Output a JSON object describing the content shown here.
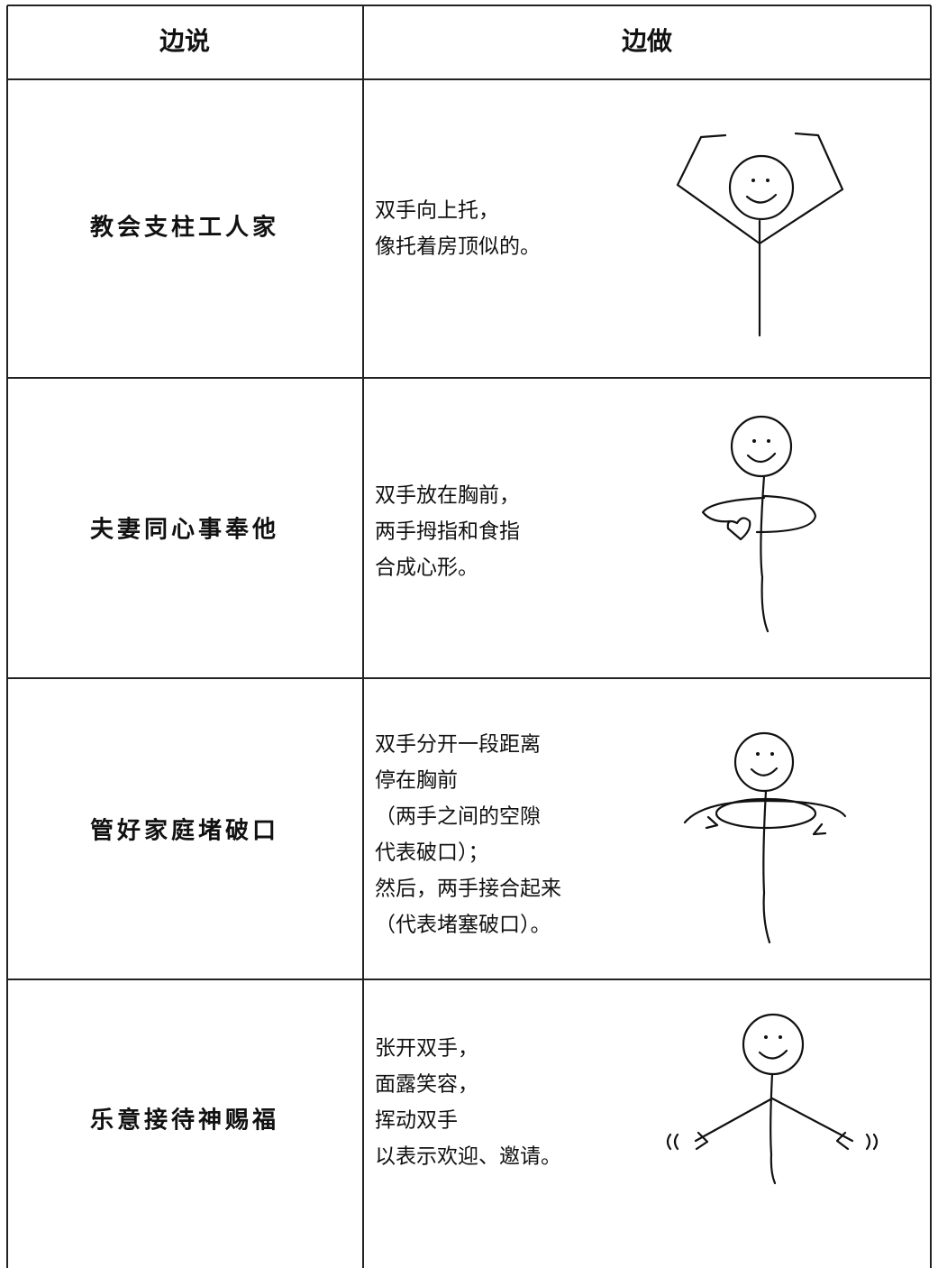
{
  "table": {
    "headers": [
      "边说",
      "边做"
    ],
    "rows": [
      {
        "say": "教会支柱工人家",
        "do": [
          "双手向上托，",
          "像托着房顶似的。"
        ]
      },
      {
        "say": "夫妻同心事奉他",
        "do": [
          "双手放在胸前，",
          "两手拇指和食指",
          "合成心形。"
        ]
      },
      {
        "say": "管好家庭堵破口",
        "do": [
          "双手分开一段距离",
          "停在胸前",
          "（两手之间的空隙",
          "代表破口）；",
          "然后，两手接合起来",
          "（代表堵塞破口）。"
        ]
      },
      {
        "say": "乐意接待神赐福",
        "do": [
          "张开双手，",
          "面露笑容，",
          "挥动双手",
          "以表示欢迎、邀请。"
        ]
      }
    ]
  }
}
